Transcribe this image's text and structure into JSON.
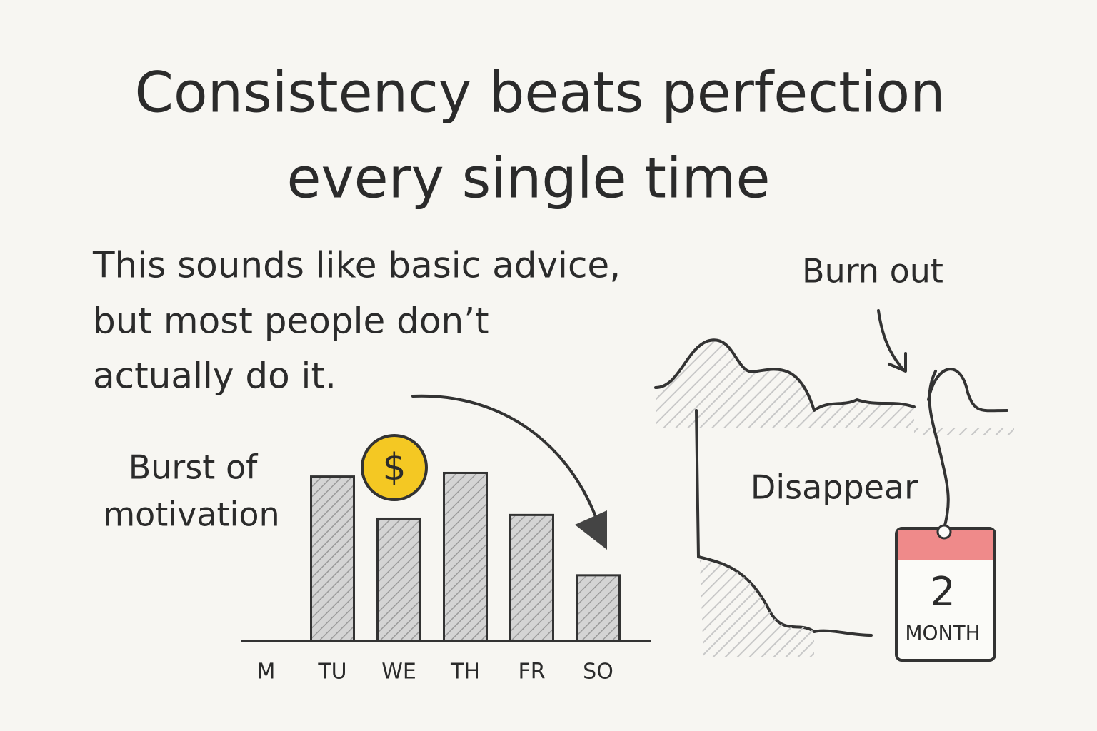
{
  "chart_data": {
    "type": "bar",
    "title": [
      "Consistency beats perfection",
      "every single time"
    ],
    "body": [
      "This sounds like basic advice,",
      "but most people don’t",
      "actually do it."
    ],
    "categories": [
      "M",
      "TU",
      "WE",
      "TH",
      "FR",
      "SO"
    ],
    "values": [
      0,
      9.0,
      6.7,
      9.2,
      6.9,
      3.6
    ],
    "color": "#bdbdbd",
    "ylim": [
      0,
      10
    ],
    "annotations": [
      "Burst of",
      "motivation",
      "$",
      "Burn out",
      "Disappear",
      "2",
      "MONTH"
    ]
  }
}
